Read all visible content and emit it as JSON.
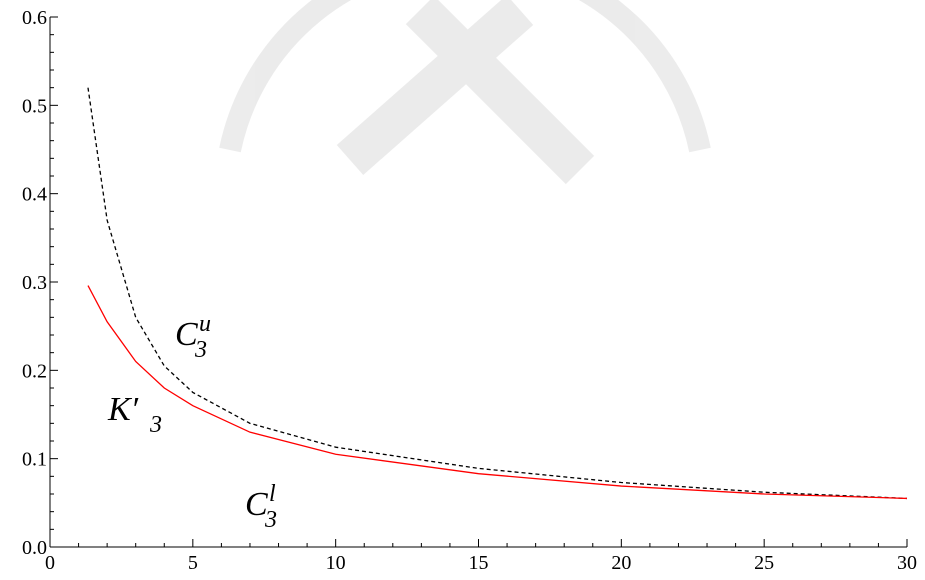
{
  "chart_data": {
    "type": "line",
    "x": [
      1.33,
      2,
      3,
      4,
      5,
      7,
      10,
      15,
      20,
      25,
      30
    ],
    "series": [
      {
        "color": "#000000",
        "dash": true,
        "values": [
          0.52,
          0.37,
          0.26,
          0.205,
          0.175,
          0.14,
          0.113,
          0.089,
          0.073,
          0.062,
          0.055
        ]
      },
      {
        "color": "#ff0000",
        "dash": false,
        "values": [
          0.296,
          0.255,
          0.21,
          0.18,
          0.16,
          0.13,
          0.105,
          0.083,
          0.069,
          0.06,
          0.055
        ]
      }
    ],
    "annotations": [
      {
        "base": "C",
        "sub": "3",
        "sup": "u"
      },
      {
        "base": "K′",
        "sub": "3"
      },
      {
        "base": "C",
        "sub": "3",
        "sup": "l"
      }
    ],
    "xlim": [
      0,
      30
    ],
    "xticks": [
      0,
      5,
      10,
      15,
      20,
      25,
      30
    ],
    "ylim": [
      0,
      0.6
    ],
    "yticks": [
      {
        "value": 0,
        "label": "0.0"
      },
      0.1,
      0.2,
      0.3,
      0.4,
      0.5,
      0.6
    ]
  }
}
